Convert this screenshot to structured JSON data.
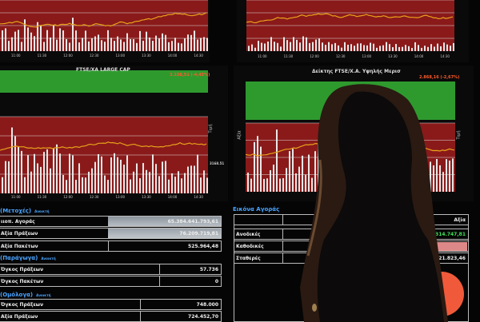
{
  "panels": [
    {
      "title": "",
      "quote": "",
      "top_color": "#8a1a1a"
    },
    {
      "title": "",
      "quote": "",
      "top_color": "#8a1a1a"
    },
    {
      "title": "FTSE/XA LARGE CAP",
      "quote": "3.158,51 (-4,45%)"
    },
    {
      "title": "Δείκτης FTSE/Χ.Α. Υψηλής Μερισ",
      "quote": "2.868,16 (-2,67%)"
    }
  ],
  "time_ticks": [
    "11:00",
    "11:30",
    "12:00",
    "12:30",
    "13:00",
    "13:30",
    "14:00",
    "14:30"
  ],
  "axis_label": "Αξία",
  "axis_label_right": "Τιμή",
  "right_axis_value": "3168.51",
  "colors": {
    "green": "#2e9a2e",
    "red": "#8a1a1a",
    "line": "#e6a21a",
    "bars": "#e8e8e8",
    "pie": "#f05a3a"
  },
  "stocks": {
    "title": "(Μετοχές)",
    "status": "Ανοικτή",
    "rows": [
      {
        "label": "ιιοπ. Αγοράς",
        "value": "65.384.641.793,61"
      },
      {
        "label": "Αξία Πράξεων",
        "value": "76.209.719,81"
      },
      {
        "label": "Αξία Πακέτων",
        "value": "525.964,48"
      }
    ]
  },
  "derivatives": {
    "title": "(Παράγωγα)",
    "status": "Ανοικτή",
    "rows": [
      {
        "label": "Όγκος Πράξεων",
        "value": "57.736"
      },
      {
        "label": "Όγκος Πακέτων",
        "value": "0"
      }
    ]
  },
  "bonds": {
    "title": "(Ομόλογα)",
    "status": "Ανοικτή",
    "rows": [
      {
        "label": "Όγκος Πράξεων",
        "value": "748.000"
      },
      {
        "label": "Αξία Πράξεων",
        "value": "724.452,70"
      }
    ]
  },
  "market": {
    "title": "Εικόνα Αγοράς",
    "header": "Αξία",
    "rows": [
      {
        "label": "Ανοδικές",
        "value": "314.747,81"
      },
      {
        "label": "Καθοδικές",
        "value": ""
      },
      {
        "label": "Σταθερές",
        "value": "21.823,46"
      }
    ]
  }
}
